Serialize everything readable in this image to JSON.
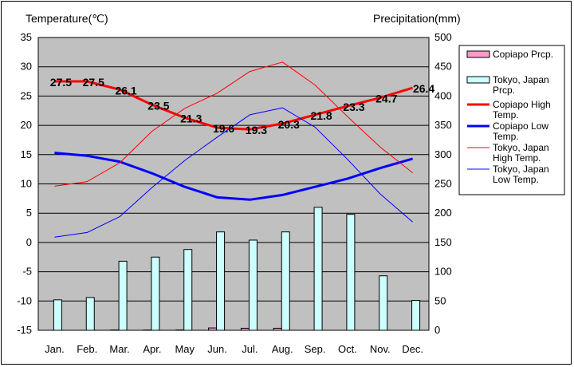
{
  "chart_data": {
    "type": "bar+line",
    "left_axis_title": "Temperature(℃)",
    "right_axis_title": "Precipitation(mm)",
    "categories": [
      "Jan.",
      "Feb.",
      "Mar.",
      "Apr.",
      "May",
      "Jun.",
      "Jul.",
      "Aug.",
      "Sep.",
      "Oct.",
      "Nov.",
      "Dec."
    ],
    "temperature_axis": {
      "min": -15,
      "max": 35,
      "step": 5
    },
    "precipitation_axis": {
      "min": 0,
      "max": 500,
      "step": 50
    },
    "grid": true,
    "plot_background": "#c0c0c0",
    "legend_position": "right",
    "bar_series": [
      {
        "name": "Copiapo Prcp.",
        "legend": [
          "Copiapo Prcp."
        ],
        "color": "#ff99cc",
        "values": [
          0,
          0,
          0.6,
          0.5,
          0.6,
          4.0,
          3.5,
          3.5,
          0,
          0,
          0,
          0
        ]
      },
      {
        "name": "Tokyo, Japan Prcp.",
        "legend": [
          "Tokyo, Japan",
          "Prcp."
        ],
        "color": "#ccffff",
        "values": [
          52,
          56,
          118,
          125,
          138,
          168,
          154,
          168,
          210,
          198,
          93,
          51
        ]
      }
    ],
    "line_series": [
      {
        "name": "Copiapo High Temp.",
        "legend": [
          "Copiapo High",
          "Temp."
        ],
        "color": "#ff0000",
        "width": 3,
        "values": [
          27.5,
          27.5,
          26.1,
          23.5,
          21.3,
          19.6,
          19.3,
          20.3,
          21.8,
          23.3,
          24.7,
          26.4
        ],
        "labels": [
          "27.5",
          "27.5",
          "26.1",
          "23.5",
          "21.3",
          "19.6",
          "19.3",
          "20.3",
          "21.8",
          "23.3",
          "24.7",
          "26.4"
        ]
      },
      {
        "name": "Copiapo Low Temp.",
        "legend": [
          "Copiapo Low",
          "Temp."
        ],
        "color": "#0000ff",
        "width": 3,
        "values": [
          15.3,
          14.8,
          13.8,
          11.8,
          9.5,
          7.7,
          7.3,
          8.1,
          9.5,
          10.9,
          12.7,
          14.3
        ]
      },
      {
        "name": "Tokyo, Japan High Temp.",
        "legend": [
          "Tokyo, Japan",
          "High Temp."
        ],
        "color": "#ff0000",
        "width": 1,
        "values": [
          9.6,
          10.4,
          13.6,
          19.0,
          22.9,
          25.5,
          29.2,
          30.8,
          26.9,
          21.5,
          16.3,
          11.9
        ]
      },
      {
        "name": "Tokyo, Japan Low Temp.",
        "legend": [
          "Tokyo, Japan",
          "Low Temp."
        ],
        "color": "#0000ff",
        "width": 1,
        "values": [
          0.9,
          1.7,
          4.4,
          9.4,
          14.0,
          18.0,
          21.8,
          23.0,
          19.7,
          14.2,
          8.3,
          3.5
        ]
      }
    ]
  }
}
